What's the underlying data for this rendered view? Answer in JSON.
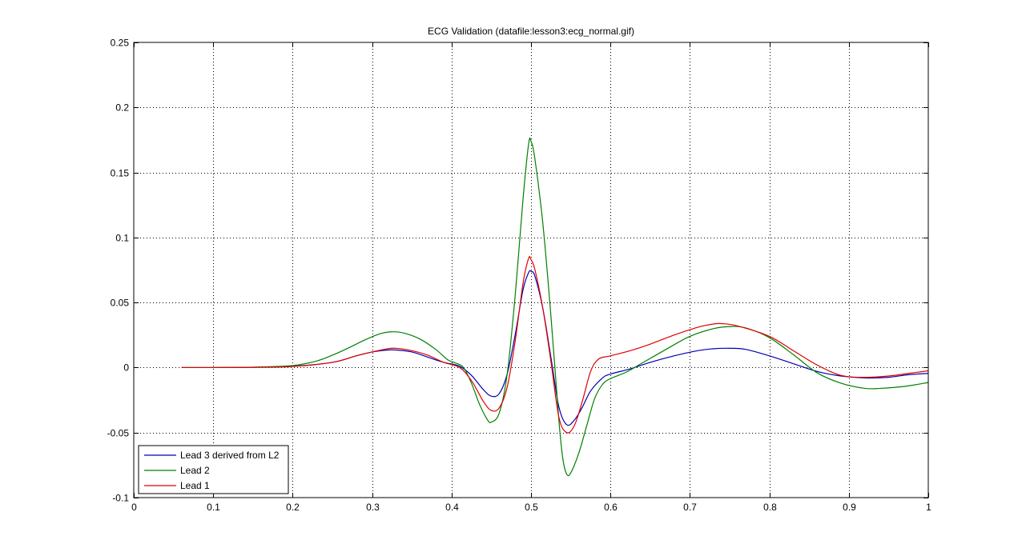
{
  "chart_data": {
    "type": "line",
    "title": "ECG Validation (datafile:lesson3:ecg_normal.gif)",
    "xlabel": "",
    "ylabel": "",
    "xlim": [
      0,
      1
    ],
    "ylim": [
      -0.1,
      0.25
    ],
    "xticks": [
      0,
      0.1,
      0.2,
      0.3,
      0.4,
      0.5,
      0.6,
      0.7,
      0.8,
      0.9,
      1
    ],
    "xtick_labels": [
      "0",
      "0.1",
      "0.2",
      "0.3",
      "0.4",
      "0.5",
      "0.6",
      "0.7",
      "0.8",
      "0.9",
      "1"
    ],
    "yticks": [
      -0.1,
      -0.05,
      0,
      0.05,
      0.1,
      0.15,
      0.2,
      0.25
    ],
    "ytick_labels": [
      "-0.1",
      "-0.05",
      "0",
      "0.05",
      "0.1",
      "0.15",
      "0.2",
      "0.25"
    ],
    "grid": true,
    "legend_position": "bottom-left",
    "series": [
      {
        "name": "Lead 3 derived from L2",
        "color": "#0000b3",
        "points": [
          [
            0.06,
            0
          ],
          [
            0.1,
            0
          ],
          [
            0.15,
            0.0002
          ],
          [
            0.2,
            0.001
          ],
          [
            0.25,
            0.004
          ],
          [
            0.28,
            0.009
          ],
          [
            0.3,
            0.012
          ],
          [
            0.32,
            0.0135
          ],
          [
            0.33,
            0.0135
          ],
          [
            0.35,
            0.012
          ],
          [
            0.37,
            0.008
          ],
          [
            0.39,
            0.004
          ],
          [
            0.41,
            0.001
          ],
          [
            0.425,
            -0.006
          ],
          [
            0.44,
            -0.017
          ],
          [
            0.45,
            -0.022
          ],
          [
            0.46,
            -0.02
          ],
          [
            0.47,
            -0.005
          ],
          [
            0.48,
            0.025
          ],
          [
            0.49,
            0.06
          ],
          [
            0.497,
            0.073
          ],
          [
            0.5,
            0.074
          ],
          [
            0.505,
            0.07
          ],
          [
            0.515,
            0.045
          ],
          [
            0.525,
            0.008
          ],
          [
            0.535,
            -0.03
          ],
          [
            0.545,
            -0.044
          ],
          [
            0.555,
            -0.04
          ],
          [
            0.565,
            -0.03
          ],
          [
            0.575,
            -0.018
          ],
          [
            0.59,
            -0.008
          ],
          [
            0.6,
            -0.005
          ],
          [
            0.625,
            -0.001
          ],
          [
            0.65,
            0.004
          ],
          [
            0.68,
            0.009
          ],
          [
            0.71,
            0.013
          ],
          [
            0.73,
            0.0145
          ],
          [
            0.75,
            0.0148
          ],
          [
            0.77,
            0.014
          ],
          [
            0.8,
            0.009
          ],
          [
            0.83,
            0.003
          ],
          [
            0.86,
            -0.003
          ],
          [
            0.89,
            -0.0065
          ],
          [
            0.92,
            -0.008
          ],
          [
            0.95,
            -0.0075
          ],
          [
            0.975,
            -0.0055
          ],
          [
            1,
            -0.0045
          ]
        ]
      },
      {
        "name": "Lead 2",
        "color": "#008000",
        "points": [
          [
            0.06,
            0
          ],
          [
            0.1,
            0
          ],
          [
            0.15,
            0.0003
          ],
          [
            0.2,
            0.0015
          ],
          [
            0.23,
            0.005
          ],
          [
            0.25,
            0.0095
          ],
          [
            0.27,
            0.015
          ],
          [
            0.29,
            0.021
          ],
          [
            0.31,
            0.026
          ],
          [
            0.325,
            0.0275
          ],
          [
            0.34,
            0.0265
          ],
          [
            0.36,
            0.022
          ],
          [
            0.38,
            0.014
          ],
          [
            0.395,
            0.006
          ],
          [
            0.405,
            0.0035
          ],
          [
            0.415,
            0.0
          ],
          [
            0.425,
            -0.012
          ],
          [
            0.435,
            -0.028
          ],
          [
            0.445,
            -0.04
          ],
          [
            0.45,
            -0.042
          ],
          [
            0.46,
            -0.035
          ],
          [
            0.47,
            -0.005
          ],
          [
            0.48,
            0.055
          ],
          [
            0.49,
            0.13
          ],
          [
            0.497,
            0.172
          ],
          [
            0.5,
            0.174
          ],
          [
            0.505,
            0.16
          ],
          [
            0.515,
            0.11
          ],
          [
            0.525,
            0.04
          ],
          [
            0.535,
            -0.04
          ],
          [
            0.54,
            -0.07
          ],
          [
            0.545,
            -0.082
          ],
          [
            0.55,
            -0.081
          ],
          [
            0.56,
            -0.066
          ],
          [
            0.57,
            -0.045
          ],
          [
            0.58,
            -0.024
          ],
          [
            0.59,
            -0.013
          ],
          [
            0.6,
            -0.0085
          ],
          [
            0.62,
            -0.0035
          ],
          [
            0.64,
            0.0035
          ],
          [
            0.67,
            0.014
          ],
          [
            0.7,
            0.024
          ],
          [
            0.73,
            0.03
          ],
          [
            0.75,
            0.0315
          ],
          [
            0.77,
            0.0305
          ],
          [
            0.8,
            0.023
          ],
          [
            0.83,
            0.01
          ],
          [
            0.86,
            -0.004
          ],
          [
            0.89,
            -0.012
          ],
          [
            0.92,
            -0.016
          ],
          [
            0.94,
            -0.016
          ],
          [
            0.97,
            -0.0145
          ],
          [
            1,
            -0.0115
          ]
        ]
      },
      {
        "name": "Lead 1",
        "color": "#e00000",
        "points": [
          [
            0.06,
            0
          ],
          [
            0.1,
            0
          ],
          [
            0.15,
            0.0002
          ],
          [
            0.2,
            0.0008
          ],
          [
            0.25,
            0.004
          ],
          [
            0.28,
            0.009
          ],
          [
            0.3,
            0.012
          ],
          [
            0.32,
            0.0145
          ],
          [
            0.33,
            0.0148
          ],
          [
            0.35,
            0.013
          ],
          [
            0.37,
            0.0095
          ],
          [
            0.39,
            0.004
          ],
          [
            0.41,
            0
          ],
          [
            0.425,
            -0.01
          ],
          [
            0.44,
            -0.026
          ],
          [
            0.45,
            -0.033
          ],
          [
            0.46,
            -0.031
          ],
          [
            0.47,
            -0.015
          ],
          [
            0.48,
            0.02
          ],
          [
            0.49,
            0.065
          ],
          [
            0.497,
            0.084
          ],
          [
            0.5,
            0.083
          ],
          [
            0.505,
            0.075
          ],
          [
            0.515,
            0.045
          ],
          [
            0.525,
            0.005
          ],
          [
            0.535,
            -0.038
          ],
          [
            0.545,
            -0.05
          ],
          [
            0.555,
            -0.044
          ],
          [
            0.565,
            -0.025
          ],
          [
            0.575,
            -0.003
          ],
          [
            0.585,
            0.0065
          ],
          [
            0.6,
            0.009
          ],
          [
            0.625,
            0.013
          ],
          [
            0.65,
            0.018
          ],
          [
            0.68,
            0.025
          ],
          [
            0.71,
            0.031
          ],
          [
            0.73,
            0.0335
          ],
          [
            0.74,
            0.0338
          ],
          [
            0.76,
            0.032
          ],
          [
            0.8,
            0.024
          ],
          [
            0.83,
            0.013
          ],
          [
            0.86,
            0.002
          ],
          [
            0.89,
            -0.006
          ],
          [
            0.92,
            -0.0075
          ],
          [
            0.95,
            -0.0065
          ],
          [
            0.975,
            -0.0045
          ],
          [
            1,
            -0.0025
          ]
        ]
      }
    ]
  }
}
